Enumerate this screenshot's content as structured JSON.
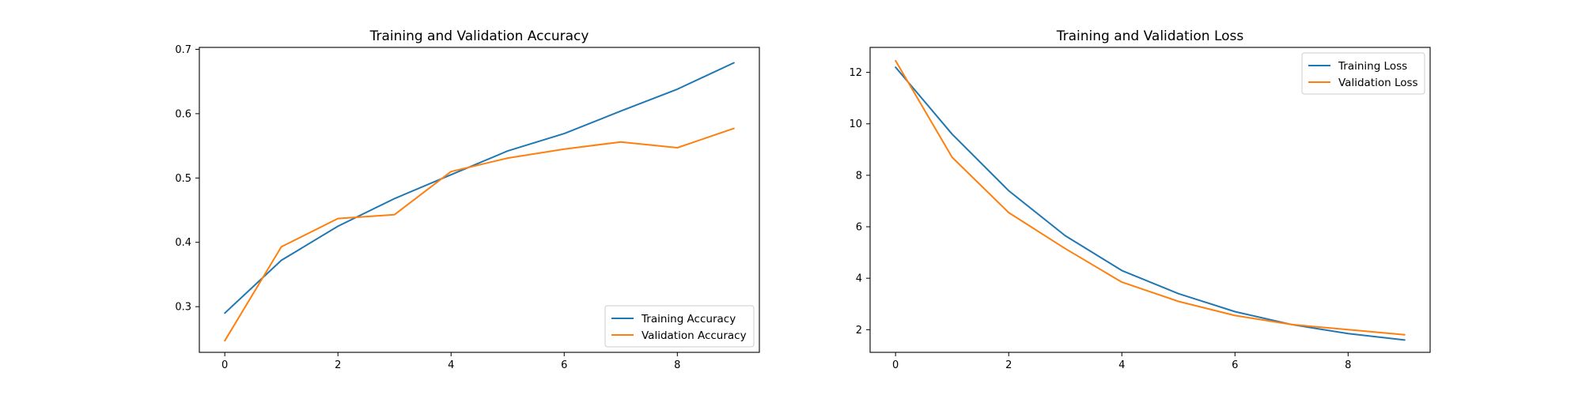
{
  "chart_data": [
    {
      "type": "line",
      "title": "Training and Validation Accuracy",
      "xlabel": "",
      "ylabel": "",
      "xlim": [
        -0.45,
        9.45
      ],
      "ylim": [
        0.229,
        0.703
      ],
      "xticks": [
        0,
        2,
        4,
        6,
        8
      ],
      "yticks": [
        0.3,
        0.4,
        0.5,
        0.6,
        0.7
      ],
      "ytick_decimals": 1,
      "legend_position": "lower-right",
      "grid": false,
      "x": [
        0,
        1,
        2,
        3,
        4,
        5,
        6,
        7,
        8,
        9
      ],
      "series": [
        {
          "name": "Training Accuracy",
          "color": "#1f77b4",
          "values": [
            0.29,
            0.372,
            0.425,
            0.468,
            0.505,
            0.542,
            0.569,
            0.604,
            0.638,
            0.679
          ]
        },
        {
          "name": "Validation Accuracy",
          "color": "#ff7f0e",
          "values": [
            0.247,
            0.393,
            0.437,
            0.443,
            0.51,
            0.531,
            0.545,
            0.556,
            0.547,
            0.577
          ]
        }
      ]
    },
    {
      "type": "line",
      "title": "Training and Validation Loss",
      "xlabel": "",
      "ylabel": "",
      "xlim": [
        -0.45,
        9.45
      ],
      "ylim": [
        1.12,
        12.97
      ],
      "xticks": [
        0,
        2,
        4,
        6,
        8
      ],
      "yticks": [
        2,
        4,
        6,
        8,
        10,
        12
      ],
      "ytick_decimals": 0,
      "legend_position": "upper-right",
      "grid": false,
      "x": [
        0,
        1,
        2,
        3,
        4,
        5,
        6,
        7,
        8,
        9
      ],
      "series": [
        {
          "name": "Training Loss",
          "color": "#1f77b4",
          "values": [
            12.2,
            9.6,
            7.4,
            5.65,
            4.3,
            3.4,
            2.7,
            2.2,
            1.85,
            1.6
          ]
        },
        {
          "name": "Validation Loss",
          "color": "#ff7f0e",
          "values": [
            12.45,
            8.7,
            6.55,
            5.15,
            3.85,
            3.1,
            2.55,
            2.2,
            2.0,
            1.8
          ]
        }
      ]
    }
  ]
}
